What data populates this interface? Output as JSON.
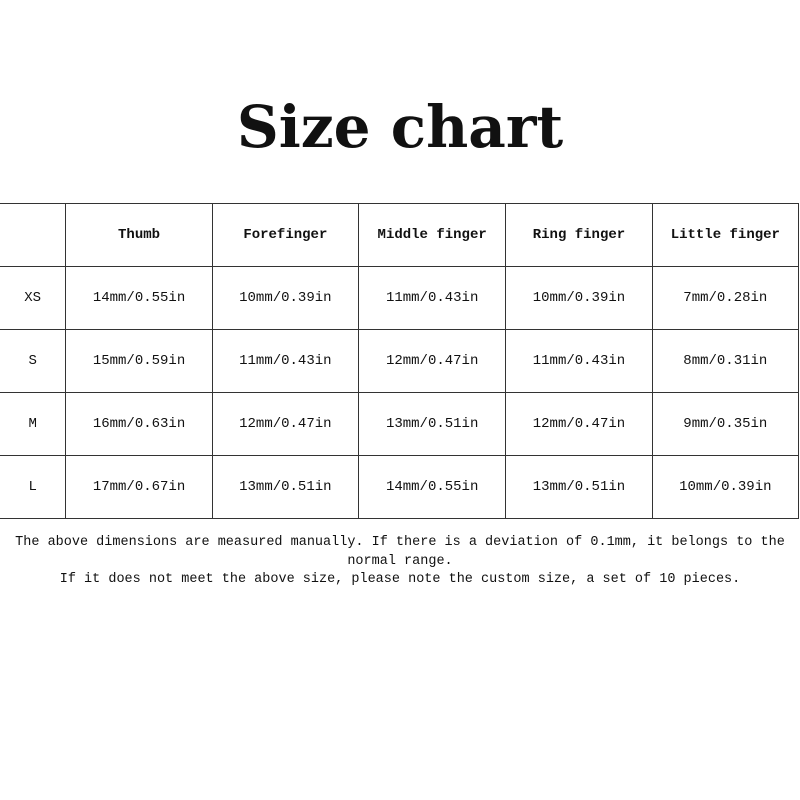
{
  "title": "Size chart",
  "table": {
    "headers": [
      "",
      "Thumb",
      "Forefinger",
      "Middle finger",
      "Ring finger",
      "Little finger"
    ],
    "rows": [
      [
        "XS",
        "14mm/0.55in",
        "10mm/0.39in",
        "11mm/0.43in",
        "10mm/0.39in",
        "7mm/0.28in"
      ],
      [
        "S",
        "15mm/0.59in",
        "11mm/0.43in",
        "12mm/0.47in",
        "11mm/0.43in",
        "8mm/0.31in"
      ],
      [
        "M",
        "16mm/0.63in",
        "12mm/0.47in",
        "13mm/0.51in",
        "12mm/0.47in",
        "9mm/0.35in"
      ],
      [
        "L",
        "17mm/0.67in",
        "13mm/0.51in",
        "14mm/0.55in",
        "13mm/0.51in",
        "10mm/0.39in"
      ]
    ]
  },
  "notes": {
    "line1": "The above dimensions are measured manually. If there is a deviation of 0.1mm, it belongs to the",
    "line2": "normal range.",
    "line3": "If it does not meet the above size, please note the custom size, a set of 10 pieces."
  }
}
